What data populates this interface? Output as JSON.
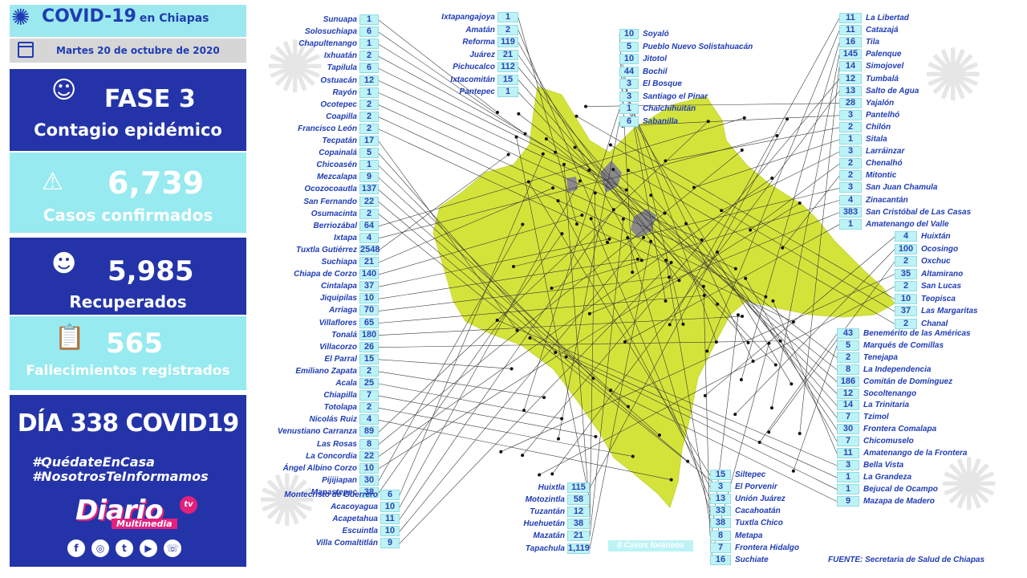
{
  "header": {
    "title": "COVID-19",
    "title_suffix": "en Chiapas",
    "date": "Martes 20 de octubre de 2020"
  },
  "phase": {
    "title": "FASE 3",
    "subtitle": "Contagio epidémico"
  },
  "confirmed": {
    "value": "6,739",
    "label": "Casos confirmados"
  },
  "recovered": {
    "value": "5,985",
    "label": "Recuperados"
  },
  "deaths": {
    "value": "565",
    "label": "Fallecimientos registrados"
  },
  "day_banner": {
    "prefix": "DÍA",
    "day": "338",
    "suffix": "COVID19"
  },
  "hashtags": [
    "#QuédateEnCasa",
    "#NosotrosTeInformamos"
  ],
  "brand": {
    "name": "Diario",
    "sub": "Multimedia",
    "tv": "tv"
  },
  "social": [
    "f",
    "◎",
    "t",
    "▶",
    "☏"
  ],
  "source": "FUENTE: Secretaria de Salud de Chiapas",
  "foreign_cases": "8 Casos foráneos",
  "colors": {
    "map_fill": "#d4e33a",
    "panel_dark": "#2434a8",
    "panel_light": "#96eaf0",
    "label_text": "#1f3cb4"
  },
  "municipalities_left": [
    {
      "name": "Sunuapa",
      "cases": "1"
    },
    {
      "name": "Solosuchiapa",
      "cases": "6"
    },
    {
      "name": "Chapultenango",
      "cases": "1"
    },
    {
      "name": "Ixhuatán",
      "cases": "2"
    },
    {
      "name": "Tapilula",
      "cases": "6"
    },
    {
      "name": "Ostuacán",
      "cases": "12"
    },
    {
      "name": "Rayón",
      "cases": "1"
    },
    {
      "name": "Ocotepec",
      "cases": "2"
    },
    {
      "name": "Coapilla",
      "cases": "2"
    },
    {
      "name": "Francisco León",
      "cases": "2"
    },
    {
      "name": "Tecpatán",
      "cases": "17"
    },
    {
      "name": "Copainalá",
      "cases": "5"
    },
    {
      "name": "Chicoasén",
      "cases": "1"
    },
    {
      "name": "Mezcalapa",
      "cases": "9"
    },
    {
      "name": "Ocozocoautla",
      "cases": "137"
    },
    {
      "name": "San Fernando",
      "cases": "22"
    },
    {
      "name": "Osumacinta",
      "cases": "2"
    },
    {
      "name": "Berriozábal",
      "cases": "64"
    },
    {
      "name": "Ixtapa",
      "cases": "4"
    },
    {
      "name": "Tuxtla Gutiérrez",
      "cases": "2548"
    },
    {
      "name": "Suchiapa",
      "cases": "21"
    },
    {
      "name": "Chiapa de Corzo",
      "cases": "140"
    },
    {
      "name": "Cintalapa",
      "cases": "37"
    },
    {
      "name": "Jiquipilas",
      "cases": "10"
    },
    {
      "name": "Arriaga",
      "cases": "70"
    },
    {
      "name": "Villaflores",
      "cases": "65"
    },
    {
      "name": "Tonalá",
      "cases": "180"
    },
    {
      "name": "Villacorzo",
      "cases": "26"
    },
    {
      "name": "El Parral",
      "cases": "15"
    },
    {
      "name": "Emiliano Zapata",
      "cases": "2"
    },
    {
      "name": "Acala",
      "cases": "25"
    },
    {
      "name": "Chiapilla",
      "cases": "7"
    },
    {
      "name": "Totolapa",
      "cases": "2"
    },
    {
      "name": "Nicolás Ruiz",
      "cases": "4"
    },
    {
      "name": "Venustiano Carranza",
      "cases": "89"
    },
    {
      "name": "Las Rosas",
      "cases": "8"
    },
    {
      "name": "La Concordia",
      "cases": "22"
    },
    {
      "name": "Ángel Albino Corzo",
      "cases": "10"
    },
    {
      "name": "Pijijiapan",
      "cases": "30"
    },
    {
      "name": "Mapastepec",
      "cases": "38"
    }
  ],
  "municipalities_bottom_left": [
    {
      "name": "Montecristo de Guerrero",
      "cases": "6"
    },
    {
      "name": "Acacoyagua",
      "cases": "10"
    },
    {
      "name": "Acapetahua",
      "cases": "11"
    },
    {
      "name": "Escuintla",
      "cases": "10"
    },
    {
      "name": "Villa Comaltitlán",
      "cases": "9"
    }
  ],
  "municipalities_top_middle": [
    {
      "name": "Ixtapangajoya",
      "cases": "1"
    },
    {
      "name": "Amatán",
      "cases": "2"
    },
    {
      "name": "Reforma",
      "cases": "119"
    },
    {
      "name": "Juárez",
      "cases": "21"
    },
    {
      "name": "Pichucalco",
      "cases": "112"
    },
    {
      "name": "Ixtacomitán",
      "cases": "15"
    },
    {
      "name": "Pantepec",
      "cases": "1"
    }
  ],
  "municipalities_top_center": [
    {
      "name": "Soyaló",
      "cases": "10"
    },
    {
      "name": "Pueblo Nuevo Solistahuacán",
      "cases": "5"
    },
    {
      "name": "Jitotol",
      "cases": "10"
    },
    {
      "name": "Bochil",
      "cases": "44"
    },
    {
      "name": "El Bosque",
      "cases": "3"
    },
    {
      "name": "Santiago el Pinar",
      "cases": "3"
    },
    {
      "name": "Chalchihuitán",
      "cases": "1"
    },
    {
      "name": "Sabanilla",
      "cases": "6"
    }
  ],
  "municipalities_top_right": [
    {
      "name": "La Libertad",
      "cases": "11"
    },
    {
      "name": "Catazajá",
      "cases": "11"
    },
    {
      "name": "Tila",
      "cases": "16"
    },
    {
      "name": "Palenque",
      "cases": "145"
    },
    {
      "name": "Simojovel",
      "cases": "14"
    },
    {
      "name": "Tumbalá",
      "cases": "12"
    },
    {
      "name": "Salto de Agua",
      "cases": "13"
    },
    {
      "name": "Yajalón",
      "cases": "28"
    },
    {
      "name": "Pantelhó",
      "cases": "3"
    },
    {
      "name": "Chilón",
      "cases": "2"
    },
    {
      "name": "Sitala",
      "cases": "1"
    },
    {
      "name": "Larráinzar",
      "cases": "3"
    },
    {
      "name": "Chenalhó",
      "cases": "2"
    },
    {
      "name": "Mitontic",
      "cases": "2"
    },
    {
      "name": "San Juan Chamula",
      "cases": "3"
    },
    {
      "name": "Zinacantán",
      "cases": "4"
    },
    {
      "name": "San Cristóbal de Las Casas",
      "cases": "383"
    },
    {
      "name": "Amatenango del Valle",
      "cases": "1"
    }
  ],
  "municipalities_mid_right": [
    {
      "name": "Huixtán",
      "cases": "4"
    },
    {
      "name": "Ocosingo",
      "cases": "100"
    },
    {
      "name": "Oxchuc",
      "cases": "2"
    },
    {
      "name": "Altamirano",
      "cases": "35"
    },
    {
      "name": "San Lucas",
      "cases": "2"
    },
    {
      "name": "Teopisca",
      "cases": "10"
    },
    {
      "name": "Las Margaritas",
      "cases": "37"
    },
    {
      "name": "Chanal",
      "cases": "2"
    }
  ],
  "municipalities_lower_right": [
    {
      "name": "Benemérito de las Américas",
      "cases": "43"
    },
    {
      "name": "Marqués de Comillas",
      "cases": "5"
    },
    {
      "name": "Tenejapa",
      "cases": "2"
    },
    {
      "name": "La Independencia",
      "cases": "8"
    },
    {
      "name": "Comitán de Domínguez",
      "cases": "186"
    },
    {
      "name": "Socoltenango",
      "cases": "12"
    },
    {
      "name": "La Trinitaria",
      "cases": "14"
    },
    {
      "name": "Tzimol",
      "cases": "7"
    },
    {
      "name": "Frontera Comalapa",
      "cases": "30"
    },
    {
      "name": "Chicomuselo",
      "cases": "7"
    },
    {
      "name": "Amatenango de la Frontera",
      "cases": "11"
    },
    {
      "name": "Bella Vista",
      "cases": "3"
    },
    {
      "name": "La Grandeza",
      "cases": "1"
    },
    {
      "name": "Bejucal de Ocampo",
      "cases": "1"
    },
    {
      "name": "Mazapa de Madero",
      "cases": "9"
    }
  ],
  "municipalities_bottom_center_left": [
    {
      "name": "Huixtla",
      "cases": "115"
    },
    {
      "name": "Motozintla",
      "cases": "58"
    },
    {
      "name": "Tuzantán",
      "cases": "12"
    },
    {
      "name": "Huehuetán",
      "cases": "38"
    },
    {
      "name": "Mazatán",
      "cases": "21"
    },
    {
      "name": "Tapachula",
      "cases": "1,119"
    }
  ],
  "municipalities_bottom_center_right": [
    {
      "name": "Siltepec",
      "cases": "15"
    },
    {
      "name": "El Porvenir",
      "cases": "3"
    },
    {
      "name": "Unión Juárez",
      "cases": "13"
    },
    {
      "name": "Cacahoatán",
      "cases": "33"
    },
    {
      "name": "Tuxtla Chico",
      "cases": "38"
    },
    {
      "name": "Metapa",
      "cases": "8"
    },
    {
      "name": "Frontera Hidalgo",
      "cases": "7"
    },
    {
      "name": "Suchiate",
      "cases": "16"
    }
  ]
}
